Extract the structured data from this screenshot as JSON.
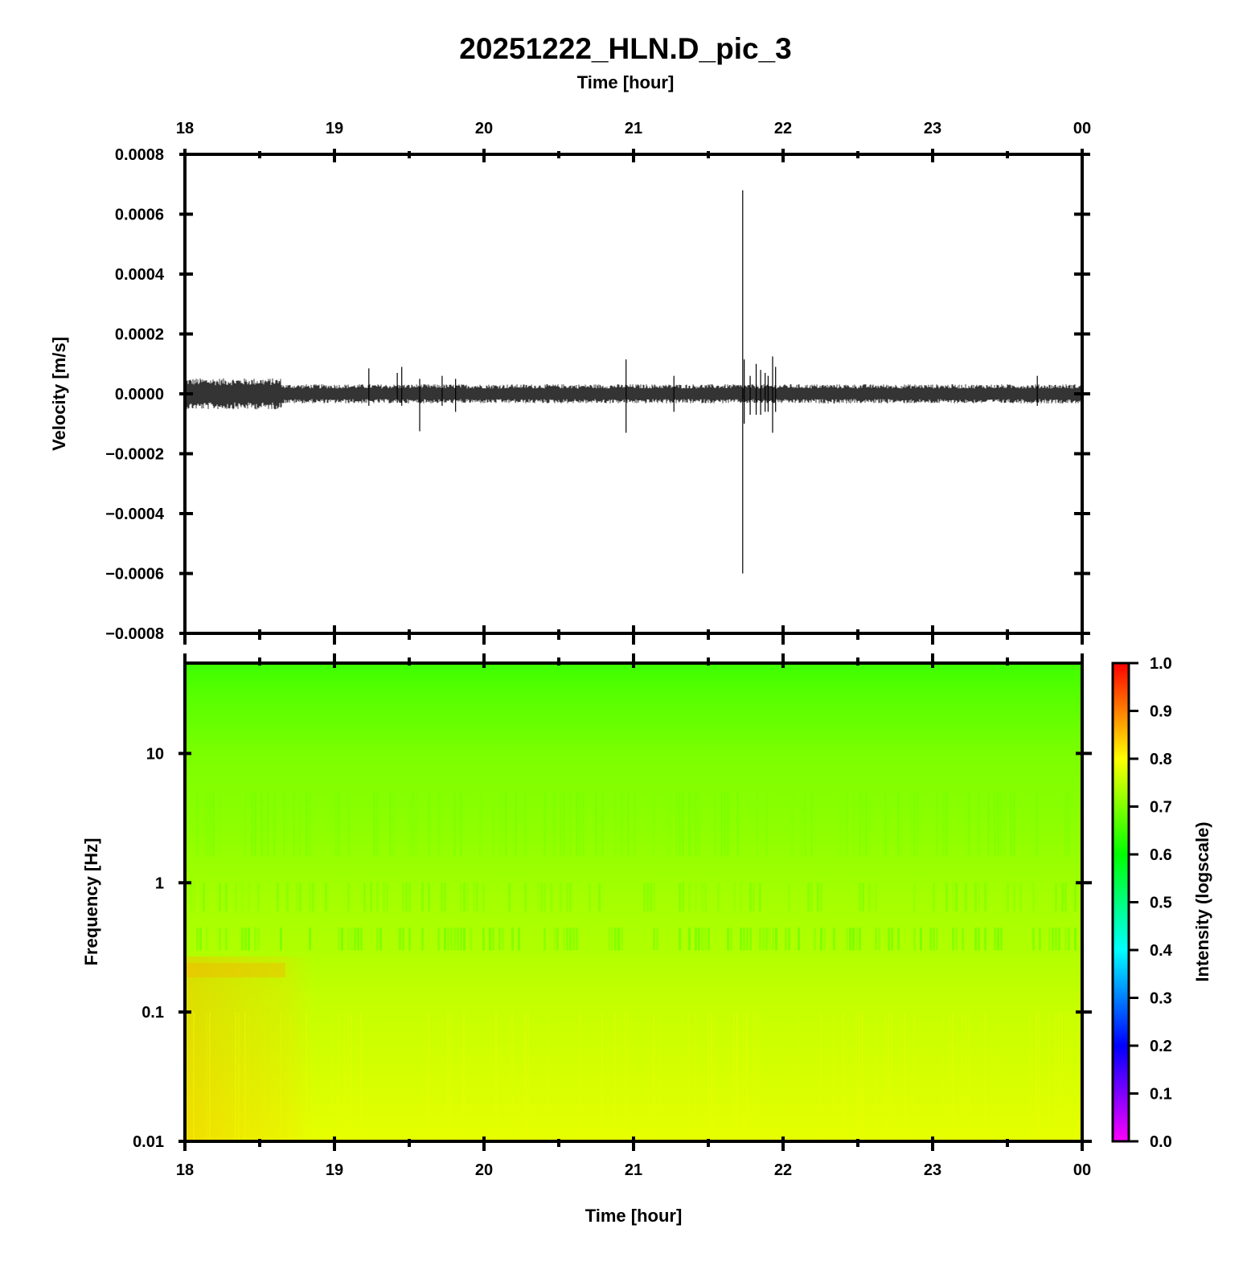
{
  "chart_data": [
    {
      "type": "line",
      "title": "20251222_HLN.D_pic_3",
      "xlabel": "Time [hour]",
      "ylabel": "Velocity [m/s]",
      "x_ticks": [
        "18",
        "19",
        "20",
        "21",
        "22",
        "23",
        "00"
      ],
      "y_ticks": [
        "0.0008",
        "0.0006",
        "0.0004",
        "0.0002",
        "0.0000",
        "−0.0002",
        "−0.0004",
        "−0.0006",
        "−0.0008"
      ],
      "xlim": [
        18,
        24
      ],
      "ylim": [
        -0.0008,
        0.0008
      ],
      "noise_amplitude": {
        "before_18.65h": 5.2e-05,
        "after_18.65h": 3.2e-05
      },
      "spikes": [
        {
          "hour": 19.23,
          "max": 8.5e-05,
          "min": -4e-05
        },
        {
          "hour": 19.42,
          "max": 7e-05,
          "min": -3e-05
        },
        {
          "hour": 19.45,
          "max": 9e-05,
          "min": -4e-05
        },
        {
          "hour": 19.57,
          "max": 5e-05,
          "min": -0.000125
        },
        {
          "hour": 19.72,
          "max": 6e-05,
          "min": -4e-05
        },
        {
          "hour": 19.81,
          "max": 5e-05,
          "min": -6e-05
        },
        {
          "hour": 20.95,
          "max": 0.000115,
          "min": -0.00013
        },
        {
          "hour": 21.27,
          "max": 6e-05,
          "min": -6e-05
        },
        {
          "hour": 21.73,
          "max": 0.00068,
          "min": -0.0006
        },
        {
          "hour": 21.74,
          "max": 0.000115,
          "min": -0.0001
        },
        {
          "hour": 21.78,
          "max": 6e-05,
          "min": -7e-05
        },
        {
          "hour": 21.82,
          "max": 0.0001,
          "min": -7e-05
        },
        {
          "hour": 21.85,
          "max": 8e-05,
          "min": -7e-05
        },
        {
          "hour": 21.88,
          "max": 7e-05,
          "min": -6e-05
        },
        {
          "hour": 21.9,
          "max": 6e-05,
          "min": -6e-05
        },
        {
          "hour": 21.93,
          "max": 0.000125,
          "min": -0.00013
        },
        {
          "hour": 21.95,
          "max": 9e-05,
          "min": -6e-05
        },
        {
          "hour": 23.7,
          "max": 6e-05,
          "min": -4e-05
        }
      ]
    },
    {
      "type": "heatmap",
      "xlabel": "Time [hour]",
      "ylabel": "Frequency [Hz]",
      "x_ticks": [
        "18",
        "19",
        "20",
        "21",
        "22",
        "23",
        "00"
      ],
      "y_ticks": [
        "10",
        "1",
        "0.1",
        "0.01"
      ],
      "y_scale": "log",
      "ylim": [
        0.01,
        50
      ],
      "xlim": [
        18,
        24
      ],
      "colorbar": {
        "label": "Intensity (logscale)",
        "ticks": [
          "1.0",
          "0.9",
          "0.8",
          "0.7",
          "0.6",
          "0.5",
          "0.4",
          "0.3",
          "0.2",
          "0.1",
          "0.0"
        ],
        "range": [
          0,
          1
        ],
        "colors": [
          "#ff00ff",
          "#0000ff",
          "#00ffff",
          "#00ff00",
          "#ffff00",
          "#ff0000"
        ]
      },
      "intensity_profile": [
        {
          "freq_hz": 50,
          "intensity": 0.62
        },
        {
          "freq_hz": 20,
          "intensity": 0.66
        },
        {
          "freq_hz": 5,
          "intensity": 0.69
        },
        {
          "freq_hz": 1,
          "intensity": 0.71
        },
        {
          "freq_hz": 0.5,
          "intensity": 0.7
        },
        {
          "freq_hz": 0.25,
          "intensity": 0.74
        },
        {
          "freq_hz": 0.1,
          "intensity": 0.76
        },
        {
          "freq_hz": 0.01,
          "intensity": 0.78
        }
      ]
    }
  ]
}
